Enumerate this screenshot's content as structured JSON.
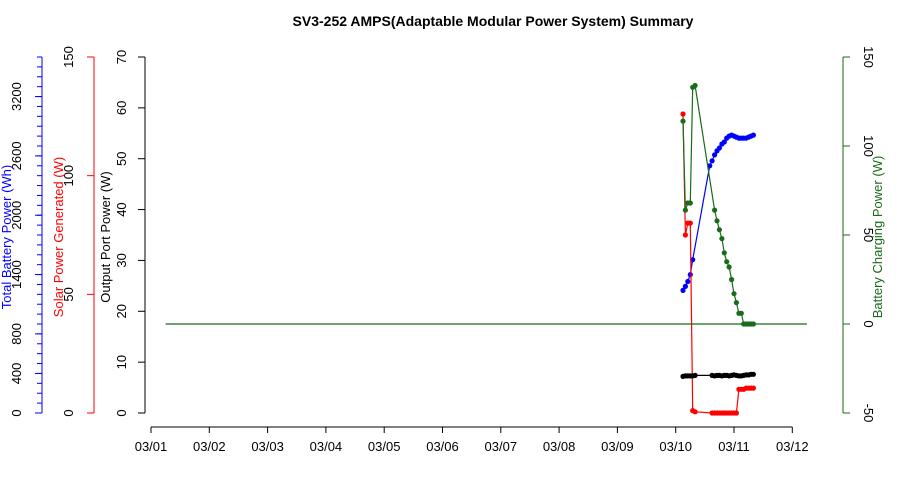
{
  "chart_data": {
    "type": "line",
    "title": "SV3-252 AMPS(Adaptable Modular Power System) Summary",
    "x_ticks": [
      "03/01",
      "03/02",
      "03/03",
      "03/04",
      "03/05",
      "03/06",
      "03/07",
      "03/08",
      "03/09",
      "03/10",
      "03/11",
      "03/12"
    ],
    "xlim": [
      "03/01 00:00",
      "03/12 00:00"
    ],
    "grid": false,
    "legend": "none",
    "axes": [
      {
        "id": "battery_total",
        "label": "Total Battery Power (Wh)",
        "color": "#0000ff",
        "ylim": [
          0,
          3600
        ],
        "ticks": [
          0,
          400,
          800,
          1400,
          2000,
          2600,
          3200
        ]
      },
      {
        "id": "solar",
        "label": "Solar Power Generated (W)",
        "color": "#ff0000",
        "ylim": [
          0,
          150
        ],
        "ticks": [
          0,
          50,
          100,
          150
        ]
      },
      {
        "id": "output",
        "label": "Output Port Power (W)",
        "color": "#000000",
        "ylim": [
          0,
          70
        ],
        "ticks": [
          0,
          10,
          20,
          30,
          40,
          50,
          60,
          70
        ]
      },
      {
        "id": "charging",
        "label": "Battery Charging Power (W)",
        "color": "#1a6b1a",
        "ylim": [
          -50,
          150
        ],
        "ticks": [
          -50,
          0,
          50,
          100,
          150
        ]
      }
    ],
    "series": [
      {
        "axis": "battery_total",
        "color": "#0000ff",
        "x": [
          "03/10 03:00",
          "03/10 04:00",
          "03/10 05:00",
          "03/10 06:00",
          "03/10 07:00",
          "03/10 14:00",
          "03/10 15:00",
          "03/10 16:00",
          "03/10 17:00",
          "03/10 18:00",
          "03/10 19:00",
          "03/10 20:00",
          "03/10 21:00",
          "03/10 22:00",
          "03/10 23:00",
          "03/11 00:00",
          "03/11 01:00",
          "03/11 02:00",
          "03/11 03:00",
          "03/11 04:00",
          "03/11 05:00",
          "03/11 06:00",
          "03/11 07:00",
          "03/11 08:00"
        ],
        "values": [
          1240,
          1280,
          1330,
          1400,
          1550,
          2500,
          2550,
          2610,
          2650,
          2680,
          2720,
          2740,
          2780,
          2800,
          2810,
          2800,
          2790,
          2780,
          2780,
          2780,
          2780,
          2790,
          2800,
          2810
        ]
      },
      {
        "axis": "solar",
        "color": "#ff0000",
        "x": [
          "03/10 03:00",
          "03/10 04:00",
          "03/10 05:00",
          "03/10 06:00",
          "03/10 07:00",
          "03/10 08:00",
          "03/10 15:00",
          "03/10 16:00",
          "03/10 17:00",
          "03/10 18:00",
          "03/10 19:00",
          "03/10 20:00",
          "03/10 21:00",
          "03/10 22:00",
          "03/10 23:00",
          "03/11 00:00",
          "03/11 01:00",
          "03/11 02:00",
          "03/11 03:00",
          "03/11 04:00",
          "03/11 05:00",
          "03/11 06:00",
          "03/11 07:00",
          "03/11 08:00"
        ],
        "values": [
          126,
          75,
          80,
          80,
          1,
          0.5,
          0,
          0,
          0,
          0,
          0,
          0,
          0,
          0,
          0,
          0,
          0,
          10,
          10,
          10,
          10.5,
          10.5,
          10.5,
          10.5
        ]
      },
      {
        "axis": "output",
        "color": "#000000",
        "x": [
          "03/10 03:00",
          "03/10 04:00",
          "03/10 05:00",
          "03/10 06:00",
          "03/10 07:00",
          "03/10 08:00",
          "03/10 15:00",
          "03/10 16:00",
          "03/10 17:00",
          "03/10 18:00",
          "03/10 19:00",
          "03/10 20:00",
          "03/10 21:00",
          "03/10 22:00",
          "03/10 23:00",
          "03/11 00:00",
          "03/11 01:00",
          "03/11 02:00",
          "03/11 03:00",
          "03/11 04:00",
          "03/11 05:00",
          "03/11 06:00",
          "03/11 07:00",
          "03/11 08:00"
        ],
        "values": [
          7.2,
          7.3,
          7.3,
          7.3,
          7.3,
          7.4,
          7.4,
          7.3,
          7.4,
          7.4,
          7.3,
          7.4,
          7.4,
          7.3,
          7.4,
          7.5,
          7.4,
          7.3,
          7.3,
          7.4,
          7.5,
          7.5,
          7.6,
          7.6
        ]
      },
      {
        "axis": "charging",
        "color": "#1a6b1a",
        "x": [
          "03/10 03:00",
          "03/10 04:00",
          "03/10 05:00",
          "03/10 06:00",
          "03/10 07:00",
          "03/10 08:00",
          "03/10 16:00",
          "03/10 17:00",
          "03/10 18:00",
          "03/10 19:00",
          "03/10 20:00",
          "03/10 21:00",
          "03/10 22:00",
          "03/10 23:00",
          "03/11 00:00",
          "03/11 01:00",
          "03/11 02:00",
          "03/11 03:00",
          "03/11 04:00",
          "03/11 05:00",
          "03/11 06:00",
          "03/11 07:00",
          "03/11 08:00"
        ],
        "values": [
          114,
          64,
          68,
          68,
          133,
          134,
          64,
          58,
          53,
          48,
          40,
          35,
          32,
          25,
          17,
          12,
          6,
          6,
          0,
          0,
          0,
          0,
          0
        ]
      },
      {
        "axis": "charging",
        "color": "#1a6b1a",
        "style": "line-only",
        "x": [
          "03/01 06:00",
          "03/12 06:00"
        ],
        "values": [
          0,
          0
        ]
      }
    ]
  }
}
